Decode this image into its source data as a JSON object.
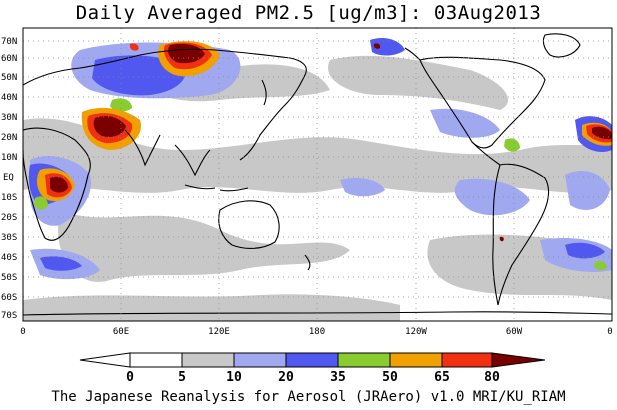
{
  "title": "Daily Averaged PM2.5 [ug/m3]: 03Aug2013",
  "footer": "The Japanese Reanalysis for Aerosol (JRAero) v1.0 MRI/KU_RIAM",
  "map": {
    "lat_labels": [
      "70N",
      "60N",
      "50N",
      "40N",
      "30N",
      "20N",
      "10N",
      "EQ",
      "10S",
      "20S",
      "30S",
      "40S",
      "50S",
      "60S",
      "70S"
    ],
    "lon_labels": [
      "0",
      "60E",
      "120E",
      "180",
      "120W",
      "60W",
      "0"
    ]
  },
  "colorbar": {
    "bounds": [
      "0",
      "5",
      "10",
      "20",
      "35",
      "50",
      "65",
      "80"
    ],
    "colors": [
      "#ffffff",
      "#c8c8c8",
      "#a0a8f0",
      "#5058f0",
      "#88cc30",
      "#f0a000",
      "#f03010",
      "#7a0000"
    ]
  }
}
